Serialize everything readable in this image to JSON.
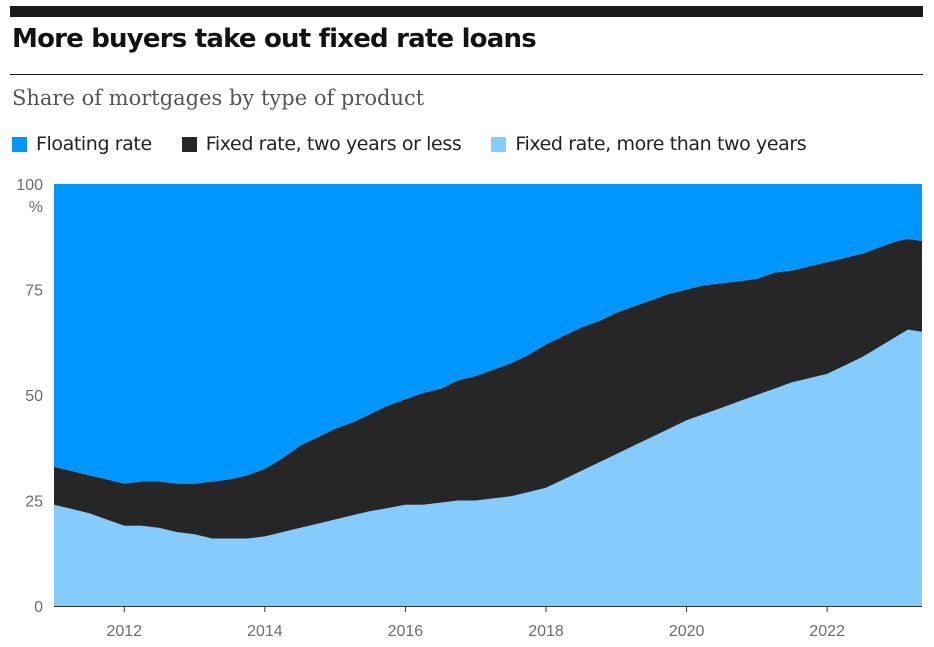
{
  "header": {
    "title": "More buyers take out fixed rate loans",
    "subtitle": "Share of mortgages by type of product"
  },
  "colors": {
    "floating": "#0096ff",
    "fixed_short": "#262626",
    "fixed_long": "#85cbfb"
  },
  "chart_data": {
    "type": "area",
    "stacked": true,
    "title": "More buyers take out fixed rate loans",
    "subtitle": "Share of mortgages by type of product",
    "xlabel": "",
    "ylabel": "%",
    "xlim": [
      2011,
      2023.35
    ],
    "ylim": [
      0,
      100
    ],
    "x_ticks": [
      2012,
      2014,
      2016,
      2018,
      2020,
      2022
    ],
    "y_ticks": [
      0,
      25,
      50,
      75,
      100
    ],
    "y_unit": "%",
    "legend_position": "top-left",
    "x": [
      2011.0,
      2011.25,
      2011.5,
      2011.75,
      2012.0,
      2012.25,
      2012.5,
      2012.75,
      2013.0,
      2013.25,
      2013.5,
      2013.75,
      2014.0,
      2014.25,
      2014.5,
      2014.75,
      2015.0,
      2015.25,
      2015.5,
      2015.75,
      2016.0,
      2016.25,
      2016.5,
      2016.75,
      2017.0,
      2017.25,
      2017.5,
      2017.75,
      2018.0,
      2018.25,
      2018.5,
      2018.75,
      2019.0,
      2019.25,
      2019.5,
      2019.75,
      2020.0,
      2020.25,
      2020.5,
      2020.75,
      2021.0,
      2021.25,
      2021.5,
      2021.75,
      2022.0,
      2022.25,
      2022.5,
      2022.75,
      2023.0,
      2023.15,
      2023.35
    ],
    "series": [
      {
        "name": "Fixed rate, more than two years",
        "key": "fixed_long",
        "values": [
          24,
          23,
          22,
          20.5,
          19,
          19,
          18.5,
          17.5,
          17,
          16,
          16,
          16,
          16.5,
          17.5,
          18.5,
          19.5,
          20.5,
          21.5,
          22.5,
          23.2,
          24,
          24,
          24.5,
          25,
          25,
          25.5,
          26,
          27,
          28,
          30,
          32,
          34,
          36,
          38,
          40,
          42,
          44,
          45.5,
          47,
          48.5,
          50,
          51.5,
          53,
          54,
          55,
          57,
          59,
          61.5,
          64,
          65.5,
          65
        ]
      },
      {
        "name": "Fixed rate, two years or less",
        "key": "fixed_short",
        "values": [
          9,
          9,
          9,
          9.5,
          10,
          10.5,
          11,
          11.5,
          12,
          13.5,
          14,
          15,
          16,
          17.5,
          19.5,
          20.5,
          21.5,
          22,
          23,
          24.3,
          25,
          26.5,
          27,
          28.5,
          29.5,
          30.5,
          31.5,
          32.5,
          34,
          34,
          34,
          33.5,
          33.5,
          33,
          32.5,
          32,
          31,
          30.5,
          29.5,
          28.5,
          27.5,
          27.5,
          26.5,
          26.5,
          26.5,
          25.5,
          24.5,
          23.5,
          22.5,
          21.5,
          21.5
        ]
      },
      {
        "name": "Floating rate",
        "key": "floating",
        "values": [
          67,
          68,
          69,
          70,
          71,
          70.5,
          70.5,
          71,
          71,
          70.5,
          70,
          69,
          67.5,
          65,
          62,
          60,
          58,
          56.5,
          54.5,
          52.5,
          51,
          49.5,
          48.5,
          46.5,
          45.5,
          44,
          42.5,
          40.5,
          38,
          36,
          34,
          32.5,
          30.5,
          29,
          27.5,
          26,
          25,
          24,
          23.5,
          23,
          22.5,
          21,
          20.5,
          19.5,
          18.5,
          17.5,
          16.5,
          15,
          13.5,
          13,
          13.5
        ]
      }
    ],
    "legend": [
      {
        "label": "Floating rate",
        "key": "floating"
      },
      {
        "label": "Fixed rate, two years or less",
        "key": "fixed_short"
      },
      {
        "label": "Fixed rate, more than two years",
        "key": "fixed_long"
      }
    ]
  }
}
